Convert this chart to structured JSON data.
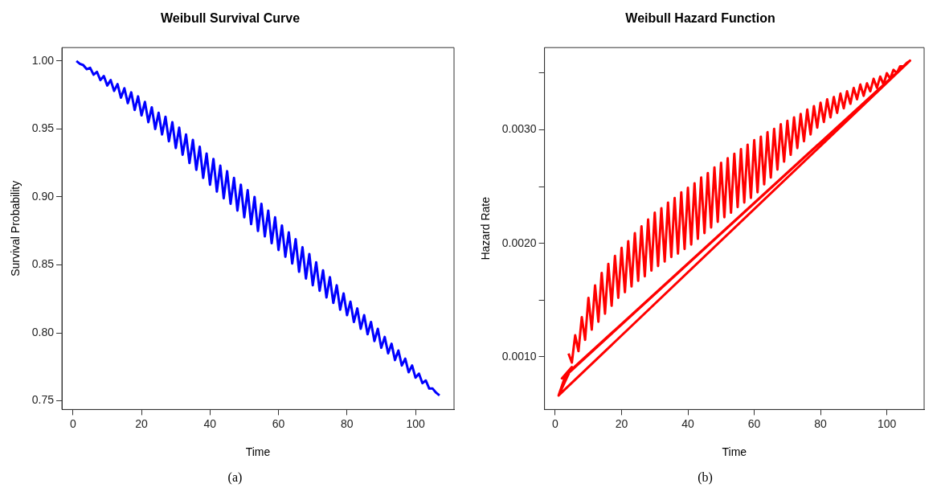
{
  "chart_data": [
    {
      "type": "line",
      "title": "Weibull Survival Curve",
      "xlabel": "Time",
      "ylabel": "Survival Probability",
      "color": "#0000ff",
      "x": [
        1,
        2,
        3,
        4,
        5,
        6,
        7,
        8,
        9,
        10,
        11,
        12,
        13,
        14,
        15,
        16,
        17,
        18,
        19,
        20,
        21,
        22,
        23,
        24,
        25,
        26,
        27,
        28,
        29,
        30,
        31,
        32,
        33,
        34,
        35,
        36,
        37,
        38,
        39,
        40,
        41,
        42,
        43,
        44,
        45,
        46,
        47,
        48,
        49,
        50,
        51,
        52,
        53,
        54,
        55,
        56,
        57,
        58,
        59,
        60,
        61,
        62,
        63,
        64,
        65,
        66,
        67,
        68,
        69,
        70,
        71,
        72,
        73,
        74,
        75,
        76,
        77,
        78,
        79,
        80,
        81,
        82,
        83,
        84,
        85,
        86,
        87,
        88,
        89,
        90,
        91,
        92,
        93,
        94,
        95,
        96,
        97,
        98,
        99,
        100,
        101,
        102,
        103,
        104,
        105,
        106,
        107
      ],
      "values": [
        1.0,
        0.998,
        0.997,
        0.994,
        0.995,
        0.99,
        0.992,
        0.986,
        0.989,
        0.982,
        0.986,
        0.978,
        0.983,
        0.973,
        0.98,
        0.969,
        0.977,
        0.964,
        0.974,
        0.96,
        0.97,
        0.955,
        0.966,
        0.95,
        0.962,
        0.946,
        0.959,
        0.941,
        0.955,
        0.936,
        0.951,
        0.931,
        0.946,
        0.925,
        0.942,
        0.92,
        0.937,
        0.914,
        0.932,
        0.909,
        0.928,
        0.904,
        0.923,
        0.899,
        0.919,
        0.895,
        0.914,
        0.89,
        0.909,
        0.885,
        0.905,
        0.88,
        0.9,
        0.875,
        0.895,
        0.871,
        0.89,
        0.866,
        0.885,
        0.861,
        0.879,
        0.856,
        0.874,
        0.851,
        0.869,
        0.845,
        0.863,
        0.84,
        0.858,
        0.835,
        0.852,
        0.831,
        0.846,
        0.826,
        0.841,
        0.822,
        0.835,
        0.817,
        0.829,
        0.813,
        0.823,
        0.808,
        0.818,
        0.803,
        0.813,
        0.799,
        0.808,
        0.794,
        0.803,
        0.789,
        0.797,
        0.785,
        0.792,
        0.78,
        0.787,
        0.776,
        0.781,
        0.771,
        0.776,
        0.767,
        0.77,
        0.763,
        0.765,
        0.759,
        0.759,
        0.756,
        0.754
      ],
      "xlim": [
        -3.24,
        111.24
      ],
      "xticks": [
        0,
        20,
        40,
        60,
        80,
        100
      ],
      "ylim": [
        0.7436,
        1.0099
      ],
      "yticks": [
        {
          "value": 0.75,
          "label": "0.75"
        },
        {
          "value": 0.8,
          "label": "0.80"
        },
        {
          "value": 0.85,
          "label": "0.85"
        },
        {
          "value": 0.9,
          "label": "0.90"
        },
        {
          "value": 0.95,
          "label": "0.95"
        },
        {
          "value": 1.0,
          "label": "1.00"
        }
      ],
      "annotations": [
        "(a)"
      ]
    },
    {
      "type": "line",
      "title": "Weibull Hazard Function",
      "xlabel": "Time",
      "ylabel": "Hazard Rate",
      "color": "#ff0000",
      "x": [
        1,
        5,
        2,
        107,
        1,
        3,
        107,
        106,
        105,
        104,
        103,
        102,
        101,
        100,
        99,
        98,
        97,
        96,
        95,
        94,
        93,
        92,
        91,
        90,
        89,
        88,
        87,
        86,
        85,
        84,
        83,
        82,
        81,
        80,
        79,
        78,
        77,
        76,
        75,
        74,
        73,
        72,
        71,
        70,
        69,
        68,
        67,
        66,
        65,
        64,
        63,
        62,
        61,
        60,
        59,
        58,
        57,
        56,
        55,
        54,
        53,
        52,
        51,
        50,
        49,
        48,
        47,
        46,
        45,
        44,
        43,
        42,
        41,
        40,
        39,
        38,
        37,
        36,
        35,
        34,
        33,
        32,
        31,
        30,
        29,
        28,
        27,
        26,
        25,
        24,
        23,
        22,
        21,
        20,
        19,
        18,
        17,
        16,
        15,
        14,
        13,
        12,
        11,
        10,
        9,
        8,
        7,
        6,
        5,
        4
      ],
      "values": [
        0.00066,
        0.00091,
        0.00081,
        0.00361,
        0.00066,
        0.00083,
        0.00361,
        0.00359,
        0.00356,
        0.00356,
        0.0035,
        0.00353,
        0.00345,
        0.0035,
        0.0034,
        0.00347,
        0.00337,
        0.00345,
        0.00334,
        0.00341,
        0.0033,
        0.0034,
        0.00327,
        0.00337,
        0.00323,
        0.00334,
        0.00319,
        0.00332,
        0.00315,
        0.00329,
        0.00311,
        0.00327,
        0.00307,
        0.00324,
        0.00302,
        0.00321,
        0.00296,
        0.00318,
        0.0029,
        0.00314,
        0.00284,
        0.00311,
        0.00278,
        0.00308,
        0.00272,
        0.00305,
        0.00265,
        0.00301,
        0.00258,
        0.00298,
        0.00252,
        0.00294,
        0.00245,
        0.00291,
        0.0024,
        0.00287,
        0.00236,
        0.00283,
        0.00232,
        0.00279,
        0.00227,
        0.00275,
        0.00223,
        0.00271,
        0.00219,
        0.00267,
        0.00214,
        0.00262,
        0.00209,
        0.00258,
        0.00204,
        0.00253,
        0.00199,
        0.00249,
        0.00195,
        0.00245,
        0.00191,
        0.0024,
        0.00188,
        0.00236,
        0.00184,
        0.00231,
        0.0018,
        0.00227,
        0.00176,
        0.00221,
        0.00171,
        0.00215,
        0.00167,
        0.00209,
        0.00162,
        0.00202,
        0.00157,
        0.00196,
        0.00152,
        0.00189,
        0.00145,
        0.00182,
        0.00138,
        0.00174,
        0.00131,
        0.00163,
        0.00124,
        0.00152,
        0.00115,
        0.00135,
        0.00105,
        0.00119,
        0.00095,
        0.00103
      ],
      "xlim": [
        -3.24,
        111.24
      ],
      "xticks": [
        0,
        20,
        40,
        60,
        80,
        100
      ],
      "ylim": [
        0.000536,
        0.003725
      ],
      "yticks": [
        {
          "value": 0.001,
          "label": "0.0010"
        },
        {
          "value": 0.0015,
          "label": null
        },
        {
          "value": 0.002,
          "label": "0.0020"
        },
        {
          "value": 0.0025,
          "label": null
        },
        {
          "value": 0.003,
          "label": "0.0030"
        },
        {
          "value": 0.0035,
          "label": null
        }
      ],
      "annotations": [
        "(b)"
      ]
    }
  ]
}
